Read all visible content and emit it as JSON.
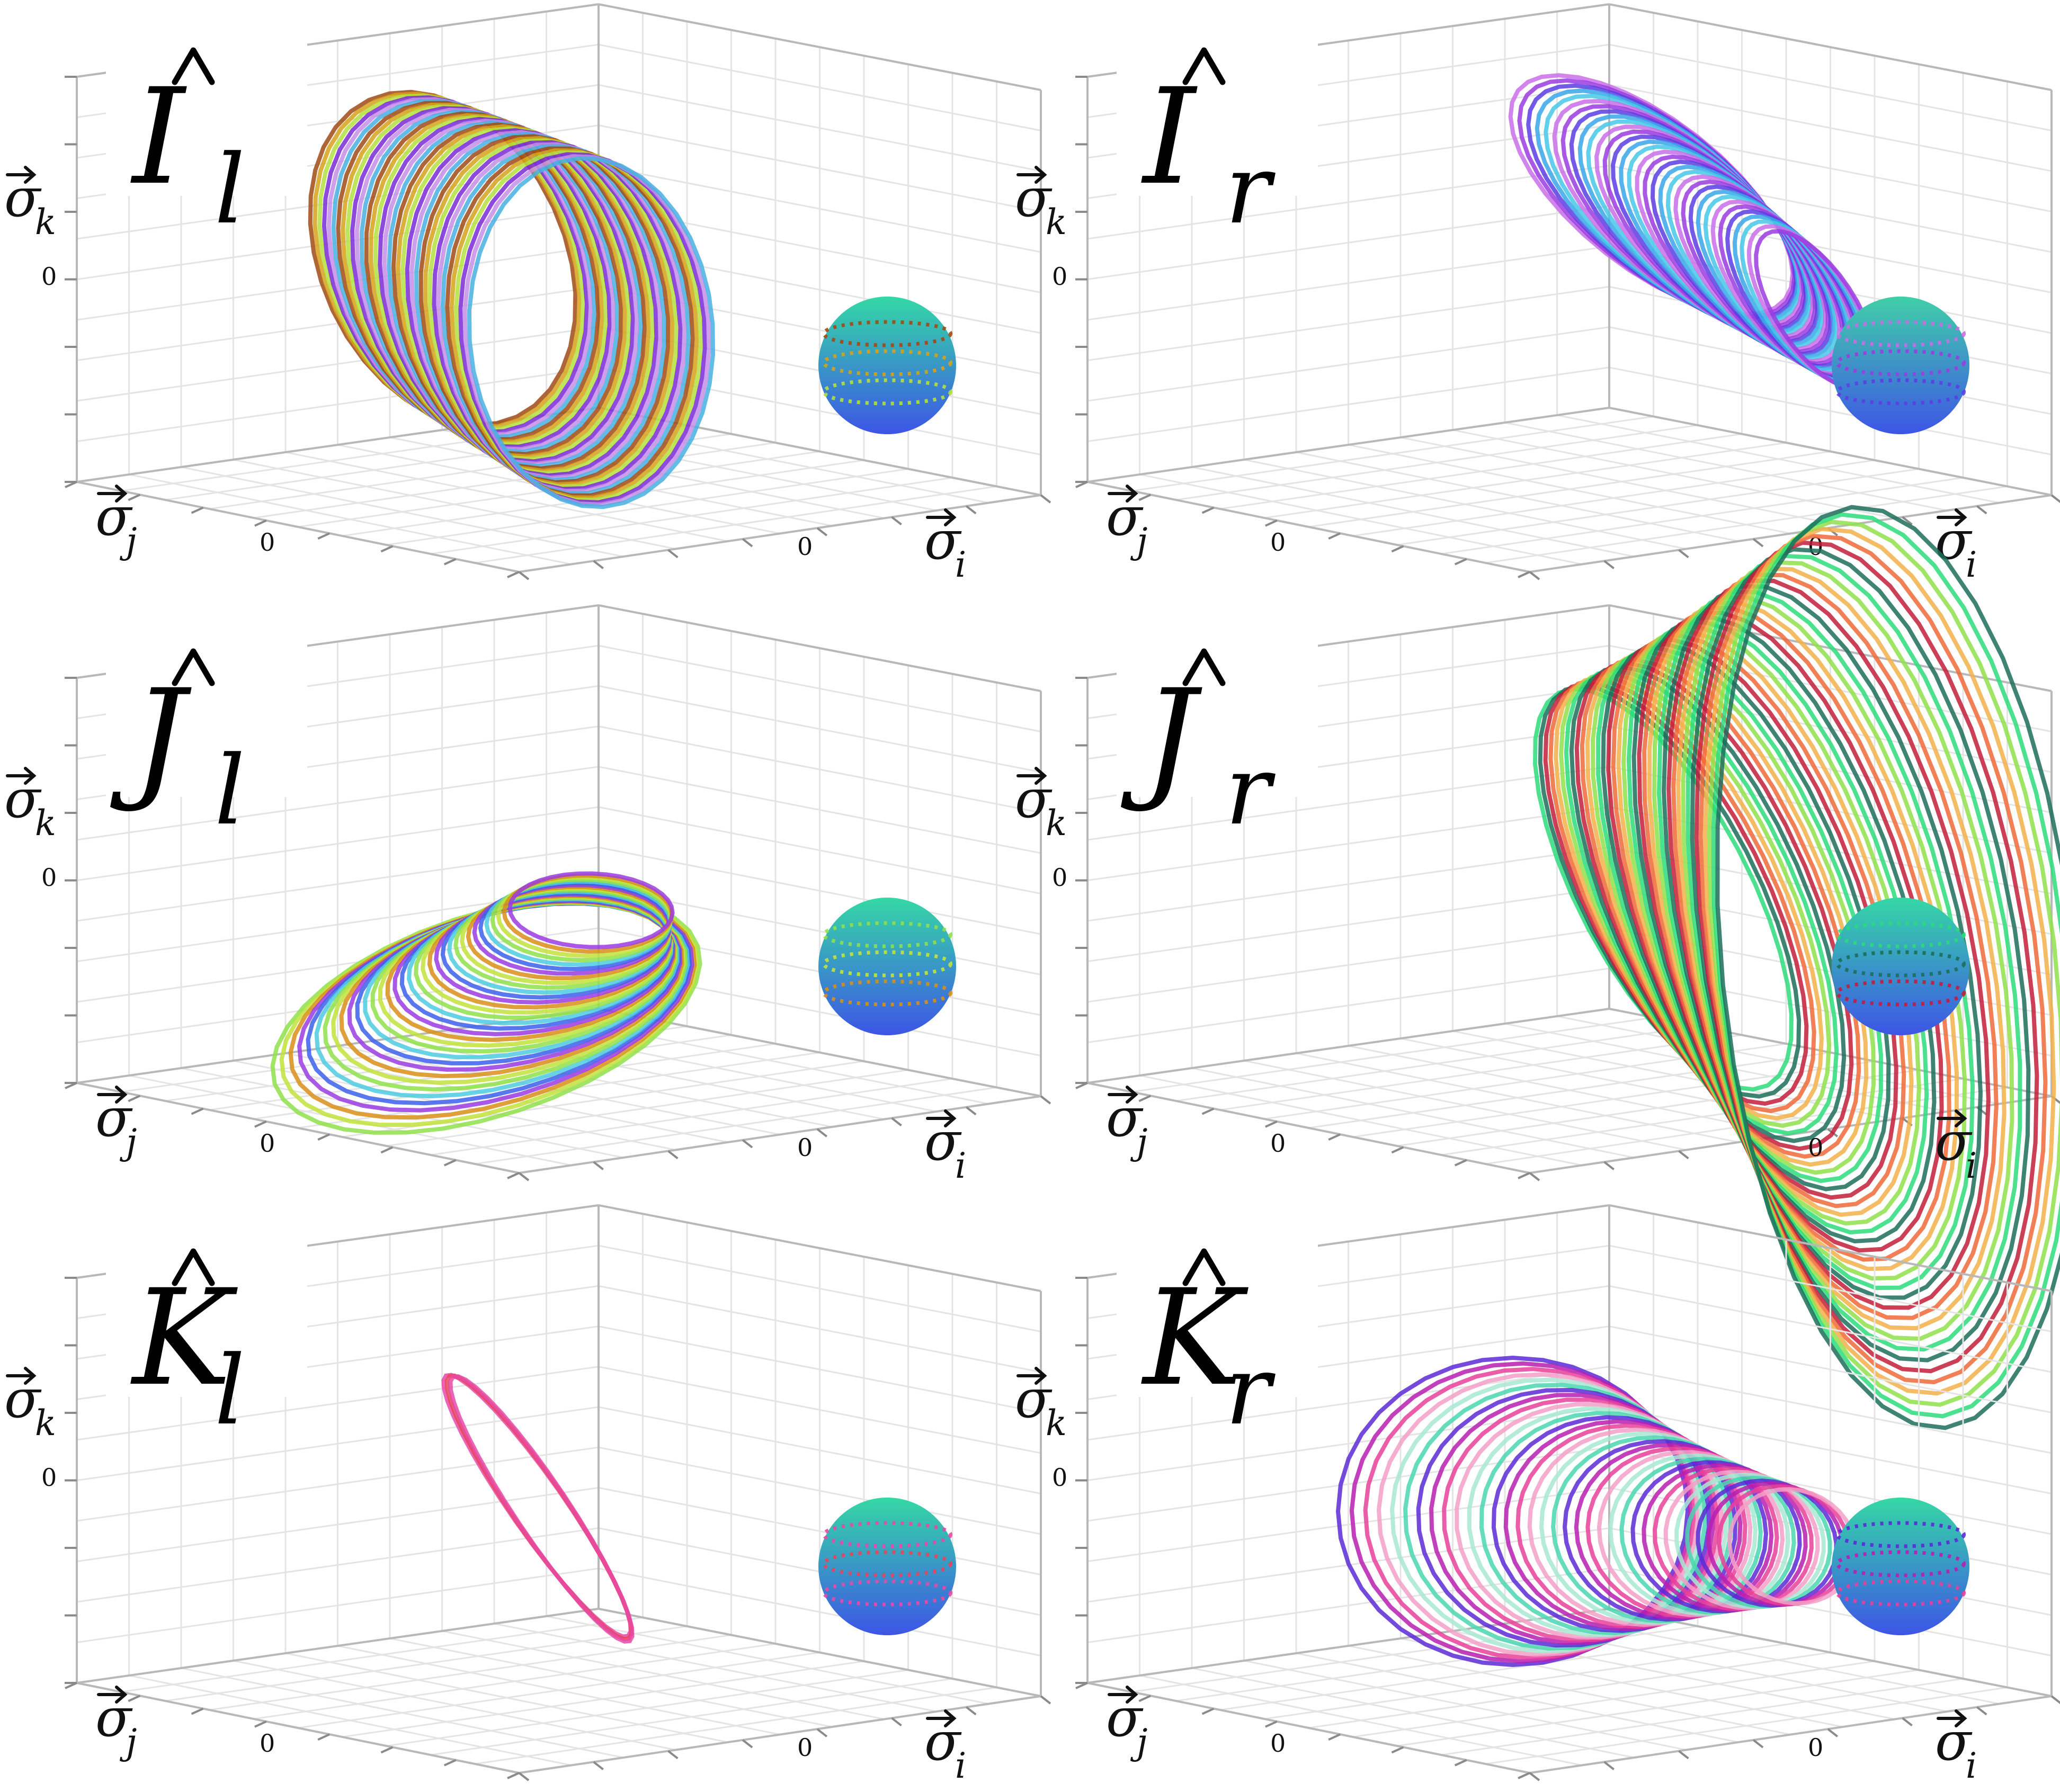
{
  "axis_labels": {
    "i_base": "σ",
    "i_sub": "i",
    "j_base": "σ",
    "j_sub": "j",
    "k_base": "σ",
    "k_sub": "k"
  },
  "zero_tick": "0",
  "panels": [
    {
      "id": "I_l",
      "title": "I",
      "subscript": "l",
      "sphere_top": "#35d8a6",
      "sphere_bottom": "#3d55e6",
      "curve_colors": [
        "#a04a14",
        "#d6a21a",
        "#b3e03f",
        "#7a2ad6",
        "#c58ee8",
        "#48b0e0"
      ]
    },
    {
      "id": "I_r",
      "title": "I",
      "subscript": "r",
      "sphere_top": "#40cfa8",
      "sphere_bottom": "#3d55e6",
      "curve_colors": [
        "#c96ee8",
        "#9b3ce0",
        "#5b3ee3",
        "#3aa6e8",
        "#46c8e8"
      ]
    },
    {
      "id": "J_l",
      "title": "J",
      "subscript": "l",
      "sphere_top": "#35d8a6",
      "sphere_bottom": "#3d55e6",
      "curve_colors": [
        "#8fe04a",
        "#c2e33c",
        "#d98f1a",
        "#9a3ce0",
        "#3d60ea",
        "#4ccbe0"
      ]
    },
    {
      "id": "J_r",
      "title": "J",
      "subscript": "r",
      "sphere_top": "#35d8a6",
      "sphere_bottom": "#3d55e6",
      "curve_colors": [
        "#2bdc7a",
        "#1d6e5a",
        "#c21d3a",
        "#f06a3a",
        "#f2b24a",
        "#8fe04a"
      ]
    },
    {
      "id": "K_l",
      "title": "K",
      "subscript": "l",
      "sphere_top": "#35d8a6",
      "sphere_bottom": "#3d55e6",
      "curve_colors": [
        "#e64aa6",
        "#e8445a"
      ]
    },
    {
      "id": "K_r",
      "title": "K",
      "subscript": "r",
      "sphere_top": "#35d8a6",
      "sphere_bottom": "#3d55e6",
      "curve_colors": [
        "#5a2ad6",
        "#b81eb0",
        "#e8409a",
        "#f3a0c8",
        "#a8e8d2",
        "#4ad6b0"
      ]
    }
  ]
}
